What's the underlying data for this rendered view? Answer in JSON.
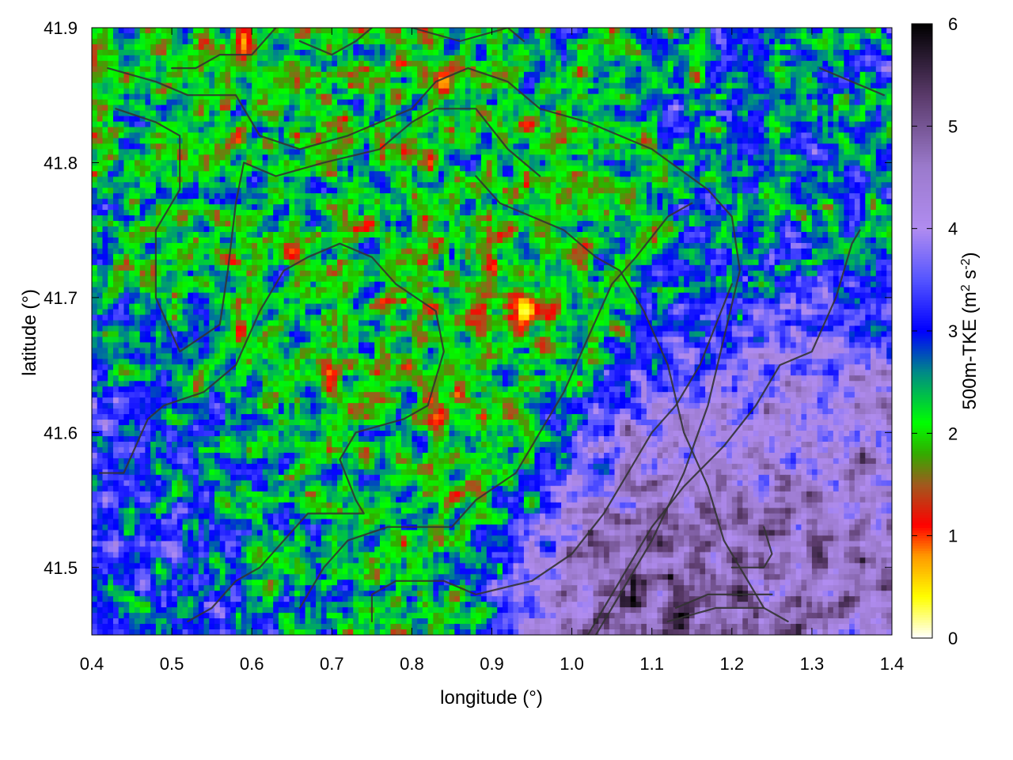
{
  "chart_data": {
    "type": "heatmap",
    "title": "",
    "xlabel": "longitude (°)",
    "ylabel": "latitude (°)",
    "colorbar_label": "500m-TKE (m² s⁻²)",
    "colorbar_label_parts": {
      "main": "500m-TKE (m",
      "sup1": "2",
      "mid": " s",
      "sup2": "-2",
      "end": ")"
    },
    "xlim": [
      0.4,
      1.4
    ],
    "ylim": [
      41.45,
      41.9
    ],
    "clim": [
      0,
      6
    ],
    "x_ticks": [
      0.4,
      0.5,
      0.6,
      0.7,
      0.8,
      0.9,
      1.0,
      1.1,
      1.2,
      1.3,
      1.4
    ],
    "x_tick_labels": [
      "0.4",
      "0.5",
      "0.6",
      "0.7",
      "0.8",
      "0.9",
      "1.0",
      "1.1",
      "1.2",
      "1.3",
      "1.4"
    ],
    "y_ticks": [
      41.5,
      41.6,
      41.7,
      41.8,
      41.9
    ],
    "y_tick_labels": [
      "41.5",
      "41.6",
      "41.7",
      "41.8",
      "41.9"
    ],
    "colorbar_ticks": [
      0,
      1,
      2,
      3,
      4,
      5,
      6
    ],
    "colorbar_tick_labels": [
      "0",
      "1",
      "2",
      "3",
      "4",
      "5",
      "6"
    ],
    "colormap": [
      {
        "value": 0.0,
        "color": "#ffffff"
      },
      {
        "value": 0.4,
        "color": "#ffff00"
      },
      {
        "value": 0.8,
        "color": "#ff9900"
      },
      {
        "value": 1.1,
        "color": "#ff0000"
      },
      {
        "value": 1.5,
        "color": "#a05a1e"
      },
      {
        "value": 1.8,
        "color": "#33aa00"
      },
      {
        "value": 2.1,
        "color": "#00ff00"
      },
      {
        "value": 2.6,
        "color": "#008888"
      },
      {
        "value": 3.0,
        "color": "#0000ff"
      },
      {
        "value": 3.5,
        "color": "#5555ff"
      },
      {
        "value": 4.0,
        "color": "#b08cf0"
      },
      {
        "value": 4.6,
        "color": "#9b7acc"
      },
      {
        "value": 5.3,
        "color": "#5a3a6a"
      },
      {
        "value": 6.0,
        "color": "#000000"
      }
    ],
    "field_regions": [
      {
        "lon": 0.65,
        "lat": 41.76,
        "mean": 2.2,
        "radius": 0.3
      },
      {
        "lon": 0.95,
        "lat": 41.68,
        "mean": 1.8,
        "radius": 0.1
      },
      {
        "lon": 1.1,
        "lat": 41.5,
        "mean": 5.2,
        "radius": 0.12
      },
      {
        "lon": 1.3,
        "lat": 41.56,
        "mean": 4.8,
        "radius": 0.12
      },
      {
        "lon": 0.45,
        "lat": 41.52,
        "mean": 3.4,
        "radius": 0.15
      },
      {
        "lon": 1.25,
        "lat": 41.8,
        "mean": 2.6,
        "radius": 0.2
      }
    ],
    "hotspots": [
      {
        "lon": 0.94,
        "lat": 41.69,
        "value": 0.2
      },
      {
        "lon": 0.84,
        "lat": 41.86,
        "value": 0.6
      },
      {
        "lon": 0.59,
        "lat": 41.89,
        "value": 0.7
      }
    ],
    "boundaries": [
      [
        [
          0.42,
          41.87
        ],
        [
          0.48,
          41.86
        ],
        [
          0.52,
          41.85
        ],
        [
          0.58,
          41.85
        ],
        [
          0.61,
          41.82
        ],
        [
          0.66,
          41.81
        ],
        [
          0.72,
          41.82
        ],
        [
          0.76,
          41.83
        ],
        [
          0.8,
          41.84
        ],
        [
          0.83,
          41.86
        ],
        [
          0.87,
          41.87
        ],
        [
          0.92,
          41.86
        ],
        [
          0.96,
          41.84
        ],
        [
          1.02,
          41.83
        ],
        [
          1.1,
          41.81
        ],
        [
          1.17,
          41.78
        ],
        [
          1.2,
          41.76
        ],
        [
          1.21,
          41.72
        ],
        [
          1.19,
          41.67
        ],
        [
          1.17,
          41.62
        ],
        [
          1.14,
          41.57
        ],
        [
          1.1,
          41.52
        ],
        [
          1.06,
          41.48
        ],
        [
          1.03,
          41.45
        ]
      ],
      [
        [
          0.43,
          41.84
        ],
        [
          0.48,
          41.83
        ],
        [
          0.51,
          41.82
        ],
        [
          0.51,
          41.78
        ],
        [
          0.48,
          41.75
        ],
        [
          0.48,
          41.7
        ],
        [
          0.51,
          41.66
        ],
        [
          0.56,
          41.68
        ],
        [
          0.57,
          41.72
        ],
        [
          0.58,
          41.77
        ],
        [
          0.59,
          41.8
        ],
        [
          0.63,
          41.79
        ],
        [
          0.69,
          41.8
        ],
        [
          0.76,
          41.81
        ],
        [
          0.8,
          41.83
        ],
        [
          0.83,
          41.84
        ],
        [
          0.88,
          41.84
        ],
        [
          0.92,
          41.81
        ],
        [
          0.96,
          41.79
        ]
      ],
      [
        [
          0.41,
          41.57
        ],
        [
          0.44,
          41.57
        ],
        [
          0.47,
          41.61
        ],
        [
          0.49,
          41.62
        ],
        [
          0.54,
          41.63
        ],
        [
          0.58,
          41.65
        ],
        [
          0.61,
          41.69
        ],
        [
          0.64,
          41.72
        ],
        [
          0.67,
          41.73
        ],
        [
          0.71,
          41.74
        ],
        [
          0.75,
          41.73
        ],
        [
          0.78,
          41.71
        ],
        [
          0.83,
          41.69
        ],
        [
          0.84,
          41.66
        ],
        [
          0.82,
          41.62
        ],
        [
          0.79,
          41.61
        ],
        [
          0.73,
          41.6
        ],
        [
          0.71,
          41.58
        ],
        [
          0.73,
          41.55
        ],
        [
          0.74,
          41.54
        ],
        [
          0.7,
          41.54
        ],
        [
          0.67,
          41.54
        ],
        [
          0.64,
          41.52
        ],
        [
          0.61,
          41.5
        ],
        [
          0.58,
          41.49
        ],
        [
          0.55,
          41.47
        ],
        [
          0.52,
          41.46
        ]
      ],
      [
        [
          0.66,
          41.47
        ],
        [
          0.69,
          41.5
        ],
        [
          0.72,
          41.52
        ],
        [
          0.77,
          41.53
        ],
        [
          0.85,
          41.53
        ],
        [
          0.88,
          41.55
        ],
        [
          0.93,
          41.57
        ],
        [
          0.96,
          41.6
        ],
        [
          0.99,
          41.63
        ],
        [
          1.02,
          41.67
        ],
        [
          1.05,
          41.71
        ],
        [
          1.08,
          41.73
        ],
        [
          1.12,
          41.76
        ],
        [
          1.15,
          41.77
        ]
      ],
      [
        [
          0.75,
          41.46
        ],
        [
          0.75,
          41.48
        ],
        [
          0.78,
          41.49
        ],
        [
          0.84,
          41.49
        ],
        [
          0.88,
          41.48
        ],
        [
          0.95,
          41.49
        ],
        [
          1.0,
          41.51
        ],
        [
          1.04,
          41.54
        ],
        [
          1.07,
          41.57
        ],
        [
          1.1,
          41.6
        ],
        [
          1.13,
          41.62
        ],
        [
          1.16,
          41.65
        ],
        [
          1.18,
          41.68
        ],
        [
          1.2,
          41.71
        ]
      ],
      [
        [
          0.88,
          41.79
        ],
        [
          0.91,
          41.77
        ],
        [
          0.95,
          41.76
        ],
        [
          0.99,
          41.75
        ],
        [
          1.03,
          41.73
        ],
        [
          1.06,
          41.72
        ],
        [
          1.09,
          41.69
        ],
        [
          1.12,
          41.65
        ],
        [
          1.14,
          41.6
        ],
        [
          1.17,
          41.56
        ],
        [
          1.19,
          41.52
        ],
        [
          1.22,
          41.49
        ],
        [
          1.24,
          41.47
        ]
      ],
      [
        [
          1.02,
          41.45
        ],
        [
          1.06,
          41.49
        ],
        [
          1.1,
          41.53
        ],
        [
          1.14,
          41.56
        ],
        [
          1.19,
          41.59
        ],
        [
          1.23,
          41.62
        ],
        [
          1.26,
          41.65
        ],
        [
          1.3,
          41.66
        ],
        [
          1.33,
          41.7
        ],
        [
          1.35,
          41.74
        ],
        [
          1.36,
          41.75
        ]
      ],
      [
        [
          1.12,
          41.46
        ],
        [
          1.18,
          41.47
        ],
        [
          1.24,
          41.47
        ],
        [
          1.27,
          41.46
        ]
      ],
      [
        [
          1.2,
          41.5
        ],
        [
          1.24,
          41.5
        ],
        [
          1.25,
          41.51
        ],
        [
          1.24,
          41.53
        ]
      ],
      [
        [
          1.13,
          41.47
        ],
        [
          1.17,
          41.48
        ],
        [
          1.23,
          41.48
        ],
        [
          1.25,
          41.48
        ]
      ],
      [
        [
          0.5,
          41.87
        ],
        [
          0.53,
          41.87
        ],
        [
          0.56,
          41.88
        ],
        [
          0.6,
          41.88
        ],
        [
          0.63,
          41.9
        ]
      ],
      [
        [
          0.66,
          41.89
        ],
        [
          0.7,
          41.88
        ],
        [
          0.73,
          41.89
        ],
        [
          0.75,
          41.9
        ]
      ],
      [
        [
          0.8,
          41.9
        ],
        [
          0.86,
          41.89
        ],
        [
          0.92,
          41.9
        ],
        [
          0.94,
          41.89
        ]
      ],
      [
        [
          1.31,
          41.87
        ],
        [
          1.35,
          41.86
        ],
        [
          1.39,
          41.85
        ]
      ]
    ]
  }
}
